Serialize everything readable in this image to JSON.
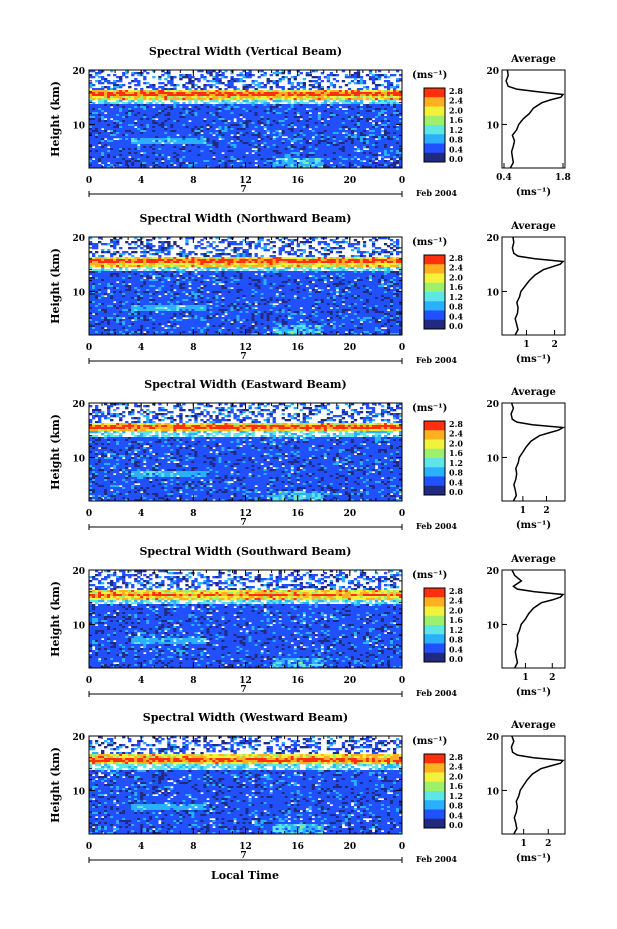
{
  "chart_data": {
    "type": "heatmap",
    "xlabel": "Local Time",
    "colorbar": {
      "unit_label": "(ms⁻¹)",
      "ticks": [
        "2.8",
        "2.4",
        "2.0",
        "1.6",
        "1.2",
        "0.8",
        "0.4",
        "0.0"
      ],
      "range": [
        0.0,
        3.0
      ],
      "colors": [
        "#202a80",
        "#2050ff",
        "#2ab0ff",
        "#5ee6e6",
        "#9cf06e",
        "#f2f23c",
        "#ffb020",
        "#ff3010"
      ]
    },
    "date_label": "Feb 2004",
    "day_label": "7",
    "panels": [
      {
        "title": "Spectral Width (Vertical Beam)",
        "ylabel": "Height (km)",
        "x_ticks": [
          "0",
          "4",
          "8",
          "12",
          "16",
          "20",
          "0"
        ],
        "y_ticks": [
          "20",
          "10"
        ],
        "ylim": [
          2,
          20
        ],
        "tropopause_km": 15.5,
        "avg_title": "Average",
        "avg_xticks": [
          "0.4",
          "1.8"
        ],
        "avg_xlim": [
          0.4,
          1.8
        ],
        "avg_xlabel": "(ms⁻¹)",
        "avg_profile": {
          "h": [
            2,
            3,
            4,
            5,
            6,
            7,
            8,
            9,
            10,
            11,
            12,
            13,
            14,
            14.5,
            15,
            15.5,
            16,
            16.5,
            17,
            18,
            19,
            20
          ],
          "w": [
            0.55,
            0.62,
            0.6,
            0.58,
            0.62,
            0.65,
            0.6,
            0.7,
            0.75,
            0.85,
            1.0,
            1.1,
            1.3,
            1.5,
            1.75,
            1.8,
            1.2,
            0.7,
            0.5,
            0.45,
            0.5,
            0.48
          ]
        }
      },
      {
        "title": "Spectral Width (Northward Beam)",
        "ylabel": "Height (km)",
        "x_ticks": [
          "0",
          "4",
          "8",
          "12",
          "16",
          "20",
          "0"
        ],
        "y_ticks": [
          "20",
          "10"
        ],
        "ylim": [
          2,
          20
        ],
        "tropopause_km": 15.5,
        "avg_title": "Average",
        "avg_xticks": [
          "1",
          "2"
        ],
        "avg_xlim": [
          0.2,
          2.3
        ],
        "avg_xlabel": "(ms⁻¹)",
        "avg_profile": {
          "h": [
            2,
            3,
            4,
            5,
            6,
            7,
            8,
            9,
            10,
            11,
            12,
            13,
            14,
            14.5,
            15,
            15.5,
            16,
            16.5,
            17,
            18,
            19,
            20
          ],
          "w": [
            0.6,
            0.7,
            0.65,
            0.6,
            0.68,
            0.7,
            0.66,
            0.75,
            0.8,
            0.95,
            1.1,
            1.3,
            1.6,
            1.9,
            2.2,
            2.3,
            1.3,
            0.7,
            0.55,
            0.5,
            0.55,
            0.52
          ]
        }
      },
      {
        "title": "Spectral Width (Eastward Beam)",
        "ylabel": "Height (km)",
        "x_ticks": [
          "0",
          "4",
          "8",
          "12",
          "16",
          "20",
          "0"
        ],
        "y_ticks": [
          "20",
          "10"
        ],
        "ylim": [
          2,
          20
        ],
        "tropopause_km": 15.6,
        "avg_title": "Average",
        "avg_xticks": [
          "1",
          "2"
        ],
        "avg_xlim": [
          0.2,
          2.7
        ],
        "avg_xlabel": "(ms⁻¹)",
        "avg_profile": {
          "h": [
            2,
            3,
            4,
            5,
            6,
            7,
            8,
            9,
            10,
            11,
            12,
            13,
            14,
            14.5,
            15,
            15.5,
            16,
            16.5,
            17,
            18,
            19,
            20
          ],
          "w": [
            0.6,
            0.72,
            0.68,
            0.62,
            0.7,
            0.74,
            0.7,
            0.8,
            0.85,
            1.0,
            1.15,
            1.35,
            1.7,
            2.1,
            2.5,
            2.7,
            1.4,
            0.75,
            0.55,
            0.5,
            0.6,
            0.52
          ]
        }
      },
      {
        "title": "Spectral Width (Southward Beam)",
        "ylabel": "Height (km)",
        "x_ticks": [
          "0",
          "4",
          "8",
          "12",
          "16",
          "20",
          "0"
        ],
        "y_ticks": [
          "20",
          "10"
        ],
        "ylim": [
          2,
          20
        ],
        "tropopause_km": 15.4,
        "avg_title": "Average",
        "avg_xticks": [
          "1",
          "2"
        ],
        "avg_xlim": [
          0.2,
          2.4
        ],
        "avg_xlabel": "(ms⁻¹)",
        "avg_profile": {
          "h": [
            2,
            3,
            4,
            5,
            6,
            7,
            8,
            9,
            10,
            11,
            12,
            13,
            14,
            14.5,
            15,
            15.5,
            16,
            16.5,
            17,
            18,
            19,
            20
          ],
          "w": [
            0.6,
            0.7,
            0.66,
            0.62,
            0.68,
            0.72,
            0.7,
            0.78,
            0.84,
            1.0,
            1.12,
            1.3,
            1.6,
            2.0,
            2.3,
            2.4,
            1.35,
            0.7,
            0.55,
            0.85,
            0.6,
            0.5
          ]
        }
      },
      {
        "title": "Spectral Width (Westward Beam)",
        "ylabel": "Height (km)",
        "x_ticks": [
          "0",
          "4",
          "8",
          "12",
          "16",
          "20",
          "0"
        ],
        "y_ticks": [
          "20",
          "10"
        ],
        "ylim": [
          2,
          20
        ],
        "tropopause_km": 15.7,
        "avg_title": "Average",
        "avg_xticks": [
          "1",
          "2"
        ],
        "avg_xlim": [
          0.2,
          2.6
        ],
        "avg_xlabel": "(ms⁻¹)",
        "avg_profile": {
          "h": [
            2,
            3,
            4,
            5,
            6,
            7,
            8,
            9,
            10,
            11,
            12,
            13,
            14,
            14.5,
            15,
            15.5,
            16,
            16.5,
            17,
            18,
            19,
            20
          ],
          "w": [
            0.6,
            0.72,
            0.68,
            0.62,
            0.7,
            0.74,
            0.7,
            0.8,
            0.86,
            1.0,
            1.15,
            1.35,
            1.7,
            2.1,
            2.5,
            2.6,
            1.4,
            0.75,
            0.55,
            0.5,
            0.6,
            0.52
          ]
        }
      }
    ]
  }
}
